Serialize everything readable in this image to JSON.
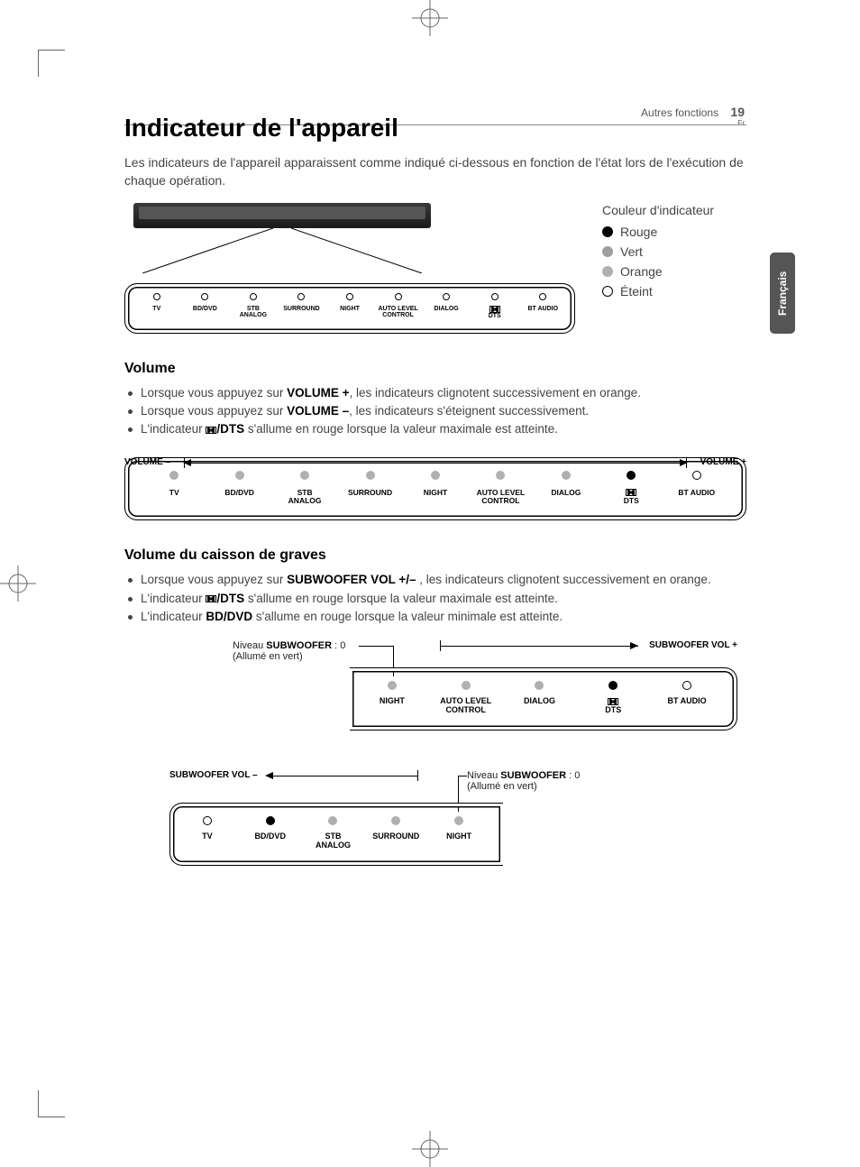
{
  "header": {
    "section": "Autres fonctions",
    "page_number": "19",
    "lang_short": "Fr"
  },
  "lang_tab": "Français",
  "title": "Indicateur de l'appareil",
  "intro": "Les indicateurs de l'appareil apparaissent comme indiqué ci-dessous en fonction de l'état lors de l'exécution de chaque opération.",
  "legend": {
    "title": "Couleur d'indicateur",
    "items": [
      "Rouge",
      "Vert",
      "Orange",
      "Éteint"
    ]
  },
  "indicators": {
    "labels": [
      "TV",
      "BD/DVD",
      "STB\nANALOG",
      "SURROUND",
      "NIGHT",
      "AUTO LEVEL\nCONTROL",
      "DIALOG",
      "DOLBY\nDTS",
      "BT AUDIO"
    ]
  },
  "volume": {
    "heading": "Volume",
    "b1a": "Lorsque vous appuyez sur ",
    "b1b": "VOLUME +",
    "b1c": ", les indicateurs clignotent successivement en orange.",
    "b2a": "Lorsque vous appuyez sur ",
    "b2b": "VOLUME –",
    "b2c": ", les indicateurs s'éteignent successivement.",
    "b3a": "L'indicateur ",
    "b3b": "/DTS",
    "b3c": " s'allume en rouge lorsque la valeur maximale est atteinte.",
    "label_minus": "VOLUME –",
    "label_plus": "VOLUME +",
    "led_states": [
      "green",
      "green",
      "green",
      "green",
      "green",
      "green",
      "green",
      "red",
      "off"
    ]
  },
  "subwoofer": {
    "heading": "Volume du caisson de graves",
    "b1a": "Lorsque vous appuyez sur ",
    "b1b": "SUBWOOFER VOL +/–",
    "b1c": " , les indicateurs clignotent successivement en orange.",
    "b2a": "L'indicateur ",
    "b2b": "/DTS",
    "b2c": " s'allume en rouge lorsque la valeur maximale est atteinte.",
    "b3a": "L'indicateur ",
    "b3b": "BD/DVD",
    "b3c": " s'allume en rouge lorsque la valeur minimale est atteinte.",
    "fig1": {
      "note_left_a": "Niveau ",
      "note_left_b": "SUBWOOFER",
      "note_left_c": " : 0",
      "note_left_d": "(Allumé en vert)",
      "label_right": "SUBWOOFER VOL +",
      "labels": [
        "NIGHT",
        "AUTO LEVEL\nCONTROL",
        "DIALOG",
        "DOLBY\nDTS",
        "BT AUDIO"
      ],
      "led_states": [
        "green",
        "green",
        "green",
        "red",
        "off"
      ]
    },
    "fig2": {
      "label_left": "SUBWOOFER VOL –",
      "note_right_a": "Niveau ",
      "note_right_b": "SUBWOOFER",
      "note_right_c": " : 0",
      "note_right_d": "(Allumé en vert)",
      "labels": [
        "TV",
        "BD/DVD",
        "STB\nANALOG",
        "SURROUND",
        "NIGHT"
      ],
      "led_states": [
        "off",
        "red",
        "green",
        "green",
        "green"
      ]
    }
  },
  "colors": {
    "text": "#444444",
    "heading": "#000000",
    "tab_bg": "#555555",
    "led_green": "#b0b0b0",
    "led_red": "#000000"
  }
}
